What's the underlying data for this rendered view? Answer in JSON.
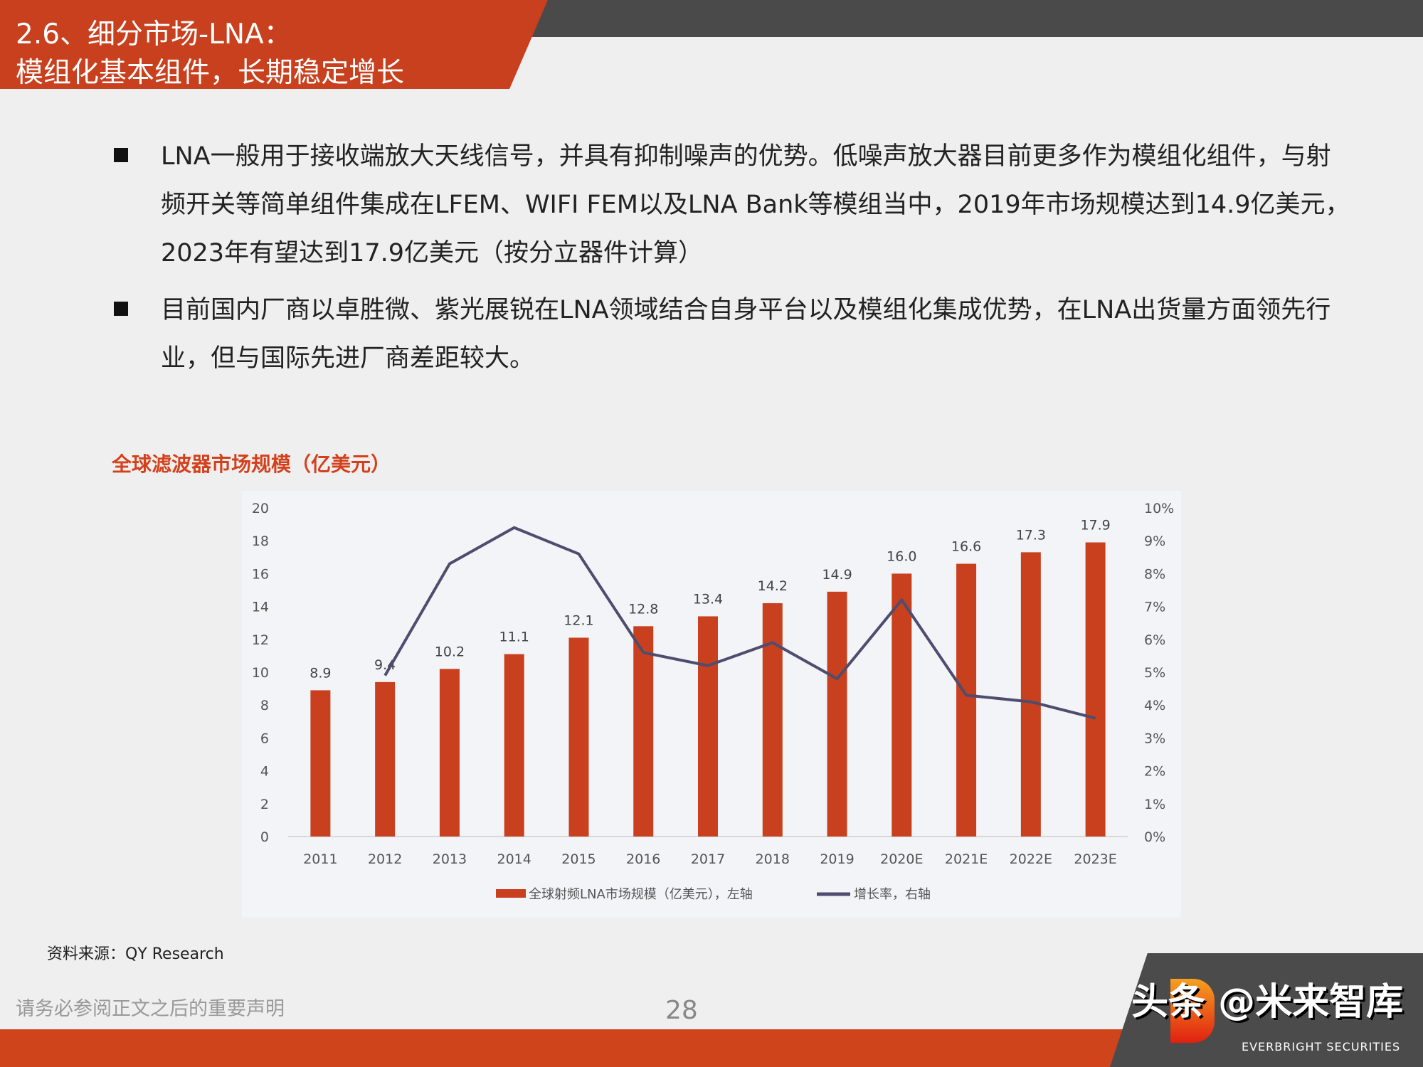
{
  "header": {
    "title_line1": "2.6、细分市场-LNA：",
    "title_line2": "模组化基本组件，长期稳定增长"
  },
  "bullets": [
    "LNA一般用于接收端放大天线信号，并具有抑制噪声的优势。低噪声放大器目前更多作为模组化组件，与射频开关等简单组件集成在LFEM、WIFI FEM以及LNA Bank等模组当中，2019年市场规模达到14.9亿美元，2023年有望达到17.9亿美元（按分立器件计算）",
    "目前国内厂商以卓胜微、紫光展锐在LNA领域结合自身平台以及模组化集成优势，在LNA出货量方面领先行业，但与国际先进厂商差距较大。"
  ],
  "chart_data": {
    "type": "bar+line",
    "title": "全球滤波器市场规模（亿美元）",
    "categories": [
      "2011",
      "2012",
      "2013",
      "2014",
      "2015",
      "2016",
      "2017",
      "2018",
      "2019",
      "2020E",
      "2021E",
      "2022E",
      "2023E"
    ],
    "series": [
      {
        "name": "全球射频LNA市场规模（亿美元），左轴",
        "type": "bar",
        "axis": "left",
        "color": "#c8401e",
        "values": [
          8.9,
          9.4,
          10.2,
          11.1,
          12.1,
          12.8,
          13.4,
          14.2,
          14.9,
          16.0,
          16.6,
          17.3,
          17.9
        ],
        "labels": [
          "8.9",
          "9.4",
          "10.2",
          "11.1",
          "12.1",
          "12.8",
          "13.4",
          "14.2",
          "14.9",
          "16.0",
          "16.6",
          "17.3",
          "17.9"
        ]
      },
      {
        "name": "增长率，右轴",
        "type": "line",
        "axis": "right",
        "color": "#4f4d6e",
        "values": [
          null,
          4.9,
          8.3,
          9.4,
          8.6,
          5.6,
          5.2,
          5.9,
          4.8,
          7.2,
          4.3,
          4.1,
          3.6
        ]
      }
    ],
    "left_ylim": [
      0,
      20
    ],
    "left_ticks": [
      "0",
      "2",
      "4",
      "6",
      "8",
      "10",
      "12",
      "14",
      "16",
      "18",
      "20"
    ],
    "right_ylim": [
      0,
      10
    ],
    "right_ticks": [
      "0%",
      "1%",
      "2%",
      "3%",
      "4%",
      "5%",
      "6%",
      "7%",
      "8%",
      "9%",
      "10%"
    ],
    "grid": false,
    "legend": "bottom"
  },
  "source": "资料来源：QY Research",
  "footer": {
    "disclaimer": "请务必参阅正文之后的重要声明",
    "page": "28",
    "watermark": "头条 @米来智库",
    "logo_text": "EVERBRIGHT SECURITIES"
  }
}
